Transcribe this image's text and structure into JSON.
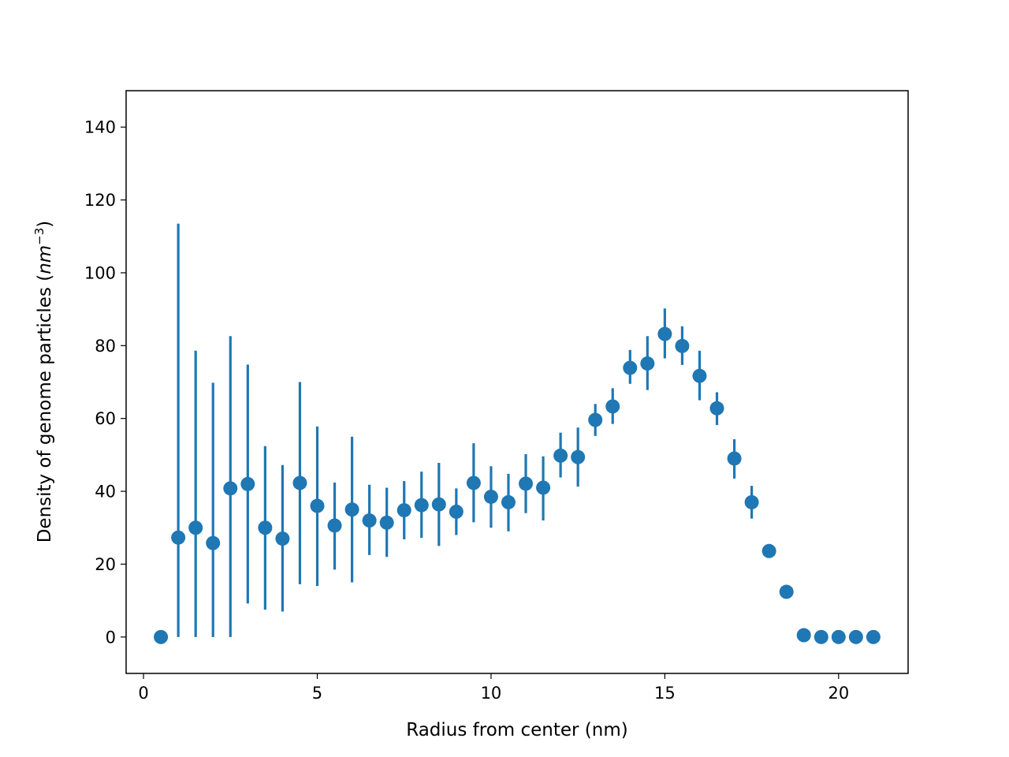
{
  "chart_data": {
    "type": "scatter",
    "title": "",
    "xlabel": "Radius from center (nm)",
    "ylabel_main": "Density of genome particles (",
    "ylabel_unit": "nm",
    "ylabel_exponent": "−3",
    "ylabel_close": ")",
    "xlim": [
      -0.5,
      22
    ],
    "ylim": [
      -10,
      150
    ],
    "xticks": [
      0,
      5,
      10,
      15,
      20
    ],
    "yticks": [
      0,
      20,
      40,
      60,
      80,
      100,
      120,
      140
    ],
    "grid": false,
    "legend": "none",
    "color": "#1f77b4",
    "series": [
      {
        "x": [
          0.5,
          1.0,
          1.5,
          2.0,
          2.5,
          3.0,
          3.5,
          4.0,
          4.5,
          5.0,
          5.5,
          6.0,
          6.5,
          7.0,
          7.5,
          8.0,
          8.5,
          9.0,
          9.5,
          10.0,
          10.5,
          11.0,
          11.5,
          12.0,
          12.5,
          13.0,
          13.5,
          14.0,
          14.5,
          15.0,
          15.5,
          16.0,
          16.5,
          17.0,
          17.5,
          18.0,
          18.5,
          19.0,
          19.5,
          20.0,
          20.5,
          21.0
        ],
        "y": [
          0,
          27.3,
          30.0,
          25.8,
          40.8,
          42.0,
          30.0,
          27.0,
          42.3,
          36.0,
          30.6,
          35.0,
          32.0,
          31.4,
          34.8,
          36.2,
          36.4,
          34.4,
          42.3,
          38.5,
          37.0,
          42.1,
          41.0,
          49.8,
          49.4,
          59.6,
          63.3,
          73.9,
          75.1,
          83.2,
          79.9,
          71.7,
          62.8,
          49.0,
          37.0,
          23.6,
          12.4,
          0.5,
          0,
          0,
          0,
          0
        ],
        "yerr_low": [
          0,
          0,
          0,
          0,
          0,
          9.2,
          7.5,
          7.0,
          14.5,
          14.0,
          18.5,
          15.0,
          22.5,
          22.0,
          26.8,
          27.2,
          25.0,
          28.0,
          31.5,
          30.0,
          29.0,
          34.0,
          32.0,
          43.8,
          41.3,
          55.2,
          58.5,
          69.5,
          67.8,
          76.5,
          74.7,
          65.0,
          58.2,
          43.5,
          32.5,
          23.6,
          11.4,
          0.5,
          0,
          0,
          0,
          0
        ],
        "yerr_high": [
          0,
          113.5,
          78.6,
          69.8,
          82.6,
          74.8,
          52.4,
          47.2,
          70.0,
          57.8,
          42.4,
          55.0,
          41.8,
          41.0,
          42.8,
          45.4,
          47.8,
          40.8,
          53.2,
          46.9,
          44.8,
          50.2,
          49.6,
          56.1,
          57.5,
          64.0,
          68.3,
          78.8,
          82.6,
          90.2,
          85.3,
          78.6,
          67.2,
          54.3,
          41.5,
          23.6,
          13.8,
          0.5,
          0,
          0,
          0,
          0
        ]
      }
    ]
  }
}
